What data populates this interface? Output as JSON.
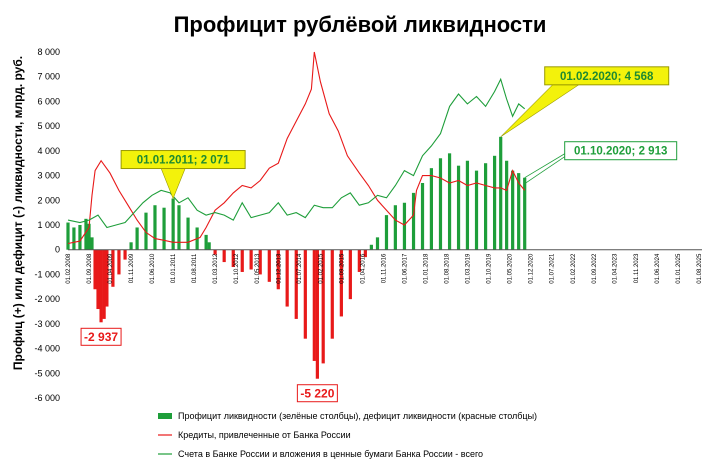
{
  "chart_data": {
    "type": "bar",
    "title": "Профицит рублёвой ликвидности",
    "ylabel": "Профиц (+) или дефицит (-) ликвидности, млрд. руб.",
    "ylim": [
      -6000,
      8000
    ],
    "yticks": [
      "8 000",
      "7 000",
      "6 000",
      "5 000",
      "4 000",
      "3 000",
      "2 000",
      "1 000",
      "0",
      "-1 000",
      "-2 000",
      "-3 000",
      "-4 000",
      "-5 000",
      "-6 000"
    ],
    "x_start": "01.02.2008",
    "x_end": "01.09.2025",
    "xtick_labels": [
      "01.02.2008",
      "01.09.2008",
      "01.04.2009",
      "01.11.2009",
      "01.06.2010",
      "01.01.2011",
      "01.08.2011",
      "01.03.2012",
      "01.10.2012",
      "01.05.2013",
      "01.12.2013",
      "01.07.2014",
      "01.02.2015",
      "01.09.2015",
      "01.04.2016",
      "01.11.2016",
      "01.06.2017",
      "01.01.2018",
      "01.08.2018",
      "01.03.2019",
      "01.10.2019",
      "01.05.2020",
      "01.12.2020",
      "01.07.2021",
      "01.02.2022",
      "01.09.2022",
      "01.04.2023",
      "01.11.2023",
      "01.06.2024",
      "01.01.2025",
      "01.08.2025"
    ],
    "series": [
      {
        "name": "Профицит ликвидности (зелёные столбцы), дефицит ликвидности (красные столбцы)",
        "kind": "bar",
        "color_pos": "#1e9e3a",
        "color_neg": "#e81919",
        "points": [
          [
            "2008-02-01",
            1100
          ],
          [
            "2008-04-01",
            900
          ],
          [
            "2008-06-01",
            1000
          ],
          [
            "2008-08-01",
            1250
          ],
          [
            "2008-09-01",
            1050
          ],
          [
            "2008-10-01",
            500
          ],
          [
            "2008-11-01",
            -1600
          ],
          [
            "2008-12-01",
            -2400
          ],
          [
            "2009-01-01",
            -2937
          ],
          [
            "2009-02-01",
            -2800
          ],
          [
            "2009-03-01",
            -2300
          ],
          [
            "2009-05-01",
            -1500
          ],
          [
            "2009-07-01",
            -1000
          ],
          [
            "2009-09-01",
            -400
          ],
          [
            "2009-11-01",
            300
          ],
          [
            "2010-01-01",
            900
          ],
          [
            "2010-04-01",
            1500
          ],
          [
            "2010-07-01",
            1800
          ],
          [
            "2010-10-01",
            1700
          ],
          [
            "2011-01-01",
            2071
          ],
          [
            "2011-03-01",
            1800
          ],
          [
            "2011-06-01",
            1300
          ],
          [
            "2011-09-01",
            900
          ],
          [
            "2011-12-01",
            600
          ],
          [
            "2012-01-01",
            300
          ],
          [
            "2012-03-01",
            -200
          ],
          [
            "2012-06-01",
            -500
          ],
          [
            "2012-09-01",
            -700
          ],
          [
            "2012-12-01",
            -900
          ],
          [
            "2013-03-01",
            -800
          ],
          [
            "2013-06-01",
            -1000
          ],
          [
            "2013-09-01",
            -1300
          ],
          [
            "2013-12-01",
            -1600
          ],
          [
            "2014-03-01",
            -2300
          ],
          [
            "2014-06-01",
            -2800
          ],
          [
            "2014-09-01",
            -3600
          ],
          [
            "2014-12-01",
            -4500
          ],
          [
            "2015-01-01",
            -5220
          ],
          [
            "2015-03-01",
            -4600
          ],
          [
            "2015-06-01",
            -3600
          ],
          [
            "2015-09-01",
            -2700
          ],
          [
            "2015-12-01",
            -2000
          ],
          [
            "2016-03-01",
            -900
          ],
          [
            "2016-05-01",
            -300
          ],
          [
            "2016-07-01",
            200
          ],
          [
            "2016-09-01",
            500
          ],
          [
            "2016-12-01",
            1400
          ],
          [
            "2017-03-01",
            1800
          ],
          [
            "2017-06-01",
            1900
          ],
          [
            "2017-09-01",
            2300
          ],
          [
            "2017-12-01",
            2700
          ],
          [
            "2018-03-01",
            3300
          ],
          [
            "2018-06-01",
            3700
          ],
          [
            "2018-09-01",
            3900
          ],
          [
            "2018-12-01",
            3400
          ],
          [
            "2019-03-01",
            3600
          ],
          [
            "2019-06-01",
            3200
          ],
          [
            "2019-09-01",
            3500
          ],
          [
            "2019-12-01",
            3800
          ],
          [
            "2020-02-01",
            4568
          ],
          [
            "2020-04-01",
            3600
          ],
          [
            "2020-06-01",
            3200
          ],
          [
            "2020-08-01",
            3100
          ],
          [
            "2020-10-01",
            2913
          ]
        ]
      },
      {
        "name": "Кредиты, привлеченные от Банка России",
        "kind": "line",
        "color": "#e81919",
        "points": [
          [
            "2008-02-01",
            250
          ],
          [
            "2008-06-01",
            350
          ],
          [
            "2008-09-01",
            900
          ],
          [
            "2008-10-01",
            2200
          ],
          [
            "2008-11-01",
            3200
          ],
          [
            "2009-01-01",
            3600
          ],
          [
            "2009-04-01",
            3100
          ],
          [
            "2009-07-01",
            2400
          ],
          [
            "2009-10-01",
            1800
          ],
          [
            "2010-01-01",
            1200
          ],
          [
            "2010-04-01",
            700
          ],
          [
            "2010-07-01",
            450
          ],
          [
            "2010-10-01",
            380
          ],
          [
            "2011-01-01",
            300
          ],
          [
            "2011-06-01",
            300
          ],
          [
            "2011-10-01",
            500
          ],
          [
            "2011-12-01",
            900
          ],
          [
            "2012-03-01",
            1600
          ],
          [
            "2012-06-01",
            1900
          ],
          [
            "2012-09-01",
            2300
          ],
          [
            "2012-12-01",
            2600
          ],
          [
            "2013-03-01",
            2500
          ],
          [
            "2013-06-01",
            2800
          ],
          [
            "2013-09-01",
            3300
          ],
          [
            "2013-12-01",
            3500
          ],
          [
            "2014-03-01",
            4500
          ],
          [
            "2014-06-01",
            5200
          ],
          [
            "2014-09-01",
            5900
          ],
          [
            "2014-11-01",
            6500
          ],
          [
            "2014-12-01",
            8000
          ],
          [
            "2015-02-01",
            6800
          ],
          [
            "2015-05-01",
            5500
          ],
          [
            "2015-08-01",
            4800
          ],
          [
            "2015-11-01",
            3800
          ],
          [
            "2016-03-01",
            3100
          ],
          [
            "2016-06-01",
            2600
          ],
          [
            "2016-09-01",
            2000
          ],
          [
            "2016-12-01",
            1600
          ],
          [
            "2017-03-01",
            1200
          ],
          [
            "2017-06-01",
            1000
          ],
          [
            "2017-09-01",
            1400
          ],
          [
            "2017-10-01",
            2400
          ],
          [
            "2017-12-01",
            3000
          ],
          [
            "2018-03-01",
            3000
          ],
          [
            "2018-06-01",
            2900
          ],
          [
            "2018-09-01",
            2700
          ],
          [
            "2018-12-01",
            2800
          ],
          [
            "2019-03-01",
            2600
          ],
          [
            "2019-06-01",
            2700
          ],
          [
            "2019-09-01",
            2600
          ],
          [
            "2019-12-01",
            2500
          ],
          [
            "2020-02-01",
            2500
          ],
          [
            "2020-04-01",
            2400
          ],
          [
            "2020-06-01",
            3200
          ],
          [
            "2020-08-01",
            2700
          ],
          [
            "2020-10-01",
            2400
          ]
        ]
      },
      {
        "name": "Счета в Банке России и вложения в ценные бумаги Банка России - всего",
        "kind": "line",
        "color": "#1e9e3a",
        "points": [
          [
            "2008-02-01",
            1200
          ],
          [
            "2008-06-01",
            1100
          ],
          [
            "2008-09-01",
            1200
          ],
          [
            "2008-12-01",
            1400
          ],
          [
            "2009-03-01",
            900
          ],
          [
            "2009-06-01",
            1000
          ],
          [
            "2009-09-01",
            1100
          ],
          [
            "2009-12-01",
            1500
          ],
          [
            "2010-03-01",
            1900
          ],
          [
            "2010-06-01",
            2200
          ],
          [
            "2010-09-01",
            2400
          ],
          [
            "2010-12-01",
            2300
          ],
          [
            "2011-03-01",
            1900
          ],
          [
            "2011-06-01",
            2100
          ],
          [
            "2011-09-01",
            1600
          ],
          [
            "2011-12-01",
            1400
          ],
          [
            "2012-03-01",
            1500
          ],
          [
            "2012-06-01",
            1400
          ],
          [
            "2012-09-01",
            1200
          ],
          [
            "2012-12-01",
            1900
          ],
          [
            "2013-03-01",
            1300
          ],
          [
            "2013-06-01",
            1400
          ],
          [
            "2013-09-01",
            1500
          ],
          [
            "2013-12-01",
            1900
          ],
          [
            "2014-03-01",
            1400
          ],
          [
            "2014-06-01",
            1500
          ],
          [
            "2014-09-01",
            1300
          ],
          [
            "2014-12-01",
            1800
          ],
          [
            "2015-03-01",
            1700
          ],
          [
            "2015-06-01",
            1700
          ],
          [
            "2015-09-01",
            2100
          ],
          [
            "2015-12-01",
            2300
          ],
          [
            "2016-03-01",
            1800
          ],
          [
            "2016-06-01",
            1900
          ],
          [
            "2016-09-01",
            2200
          ],
          [
            "2016-12-01",
            2100
          ],
          [
            "2017-03-01",
            2600
          ],
          [
            "2017-06-01",
            3200
          ],
          [
            "2017-09-01",
            3000
          ],
          [
            "2017-12-01",
            3800
          ],
          [
            "2018-03-01",
            4200
          ],
          [
            "2018-06-01",
            4700
          ],
          [
            "2018-09-01",
            5800
          ],
          [
            "2018-12-01",
            6300
          ],
          [
            "2019-03-01",
            5900
          ],
          [
            "2019-06-01",
            6200
          ],
          [
            "2019-09-01",
            5800
          ],
          [
            "2019-12-01",
            6400
          ],
          [
            "2020-02-01",
            6900
          ],
          [
            "2020-04-01",
            6100
          ],
          [
            "2020-06-01",
            5400
          ],
          [
            "2020-08-01",
            5900
          ],
          [
            "2020-10-01",
            5700
          ]
        ]
      }
    ],
    "annotations": [
      {
        "label": "-2 937",
        "x": "2009-01-01",
        "y": -2937,
        "style": "box-red"
      },
      {
        "label": "-5 220",
        "x": "2015-01-01",
        "y": -5220,
        "style": "box-red"
      },
      {
        "label": "01.01.2011; 2 071",
        "x": "2011-01-01",
        "y": 2071,
        "style": "callout-yellow"
      },
      {
        "label": "01.02.2020; 4 568",
        "x": "2020-02-01",
        "y": 4568,
        "style": "callout-yellow"
      },
      {
        "label": "01.10.2020; 2 913",
        "x": "2020-10-01",
        "y": 2913,
        "style": "box-green"
      }
    ],
    "legend_placement": "bottom",
    "grid": false
  },
  "colors": {
    "bar_positive": "#1e9e3a",
    "bar_negative": "#e81919",
    "loans_line": "#e81919",
    "accounts_line": "#1e9e3a",
    "callout_fill": "#f3f20b",
    "box_green_text": "#1e9e3a",
    "box_red_text": "#e81919"
  }
}
